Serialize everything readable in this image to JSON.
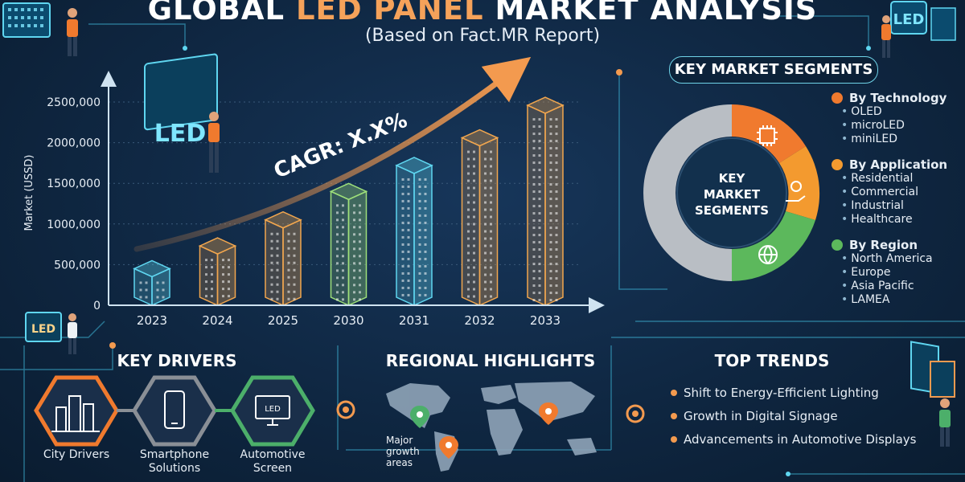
{
  "header": {
    "title_part1": "GLOBAL ",
    "title_highlight": "LED PANEL",
    "title_part2": " MARKET ANALYSIS",
    "subtitle": "(Based on Fact.MR Report)"
  },
  "chart_data": {
    "type": "bar",
    "categories": [
      "2023",
      "2024",
      "2025",
      "2030",
      "2031",
      "2032",
      "2033"
    ],
    "values": [
      450000,
      730000,
      1050000,
      1400000,
      1720000,
      2060000,
      2460000
    ],
    "title": "",
    "xlabel": "",
    "ylabel": "Market (USSD)",
    "ylim": [
      0,
      2500000
    ],
    "yticks": [
      0,
      500000,
      1000000,
      1500000,
      2000000,
      2500000
    ],
    "ytick_labels": [
      "0",
      "500,000",
      "1000,000",
      "1500,000",
      "2000,000",
      "2500,000"
    ],
    "annotation": "CAGR: X.X%",
    "bar_colors": [
      "#5fd6f0",
      "#f1a64e",
      "#f1a64e",
      "#9ee07a",
      "#5fd6f0",
      "#f1a64e",
      "#f1a64e"
    ]
  },
  "segments": {
    "heading": "KEY MARKET SEGMENTS",
    "center_label": [
      "KEY",
      "MARKET",
      "SEGMENTS"
    ],
    "groups": [
      {
        "title": "By Technology",
        "color": "#f07a2e",
        "items": [
          "OLED",
          "microLED",
          "miniLED"
        ]
      },
      {
        "title": "By Application",
        "color": "#f39a2f",
        "items": [
          "Residential",
          "Commercial",
          "Industrial",
          "Healthcare"
        ]
      },
      {
        "title": "By Region",
        "color": "#5cb85c",
        "items": [
          "North America",
          "Europe",
          "Asia Pacific",
          "LAMEA"
        ]
      }
    ]
  },
  "drivers": {
    "heading": "KEY DRIVERS",
    "items": [
      {
        "label": "City Drivers",
        "icon": "city-icon",
        "color": "#f07a2e"
      },
      {
        "label": "Smartphone\nSolutions",
        "icon": "smartphone-icon",
        "color": "#8a8f96"
      },
      {
        "label": "Automotive\nScreen",
        "icon": "led-screen-icon",
        "color": "#4caf6a"
      }
    ]
  },
  "regional": {
    "heading": "REGIONAL HIGHLIGHTS",
    "map_label": "Major\ngrowth\nareas"
  },
  "trends": {
    "heading": "TOP TRENDS",
    "items": [
      "Shift to Energy-Efficient Lighting",
      "Growth in Digital Signage",
      "Advancements in Automotive Displays"
    ]
  },
  "decor": {
    "led_sign": "LED"
  }
}
